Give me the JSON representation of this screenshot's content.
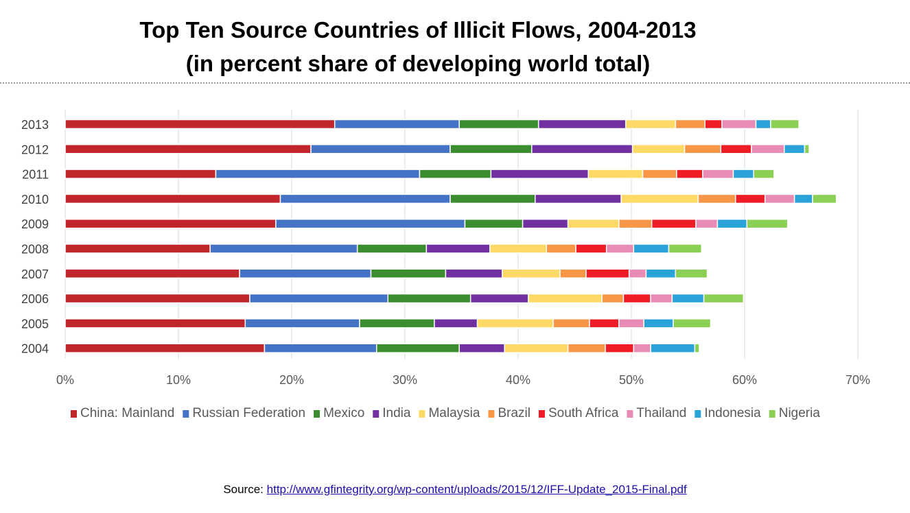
{
  "title": {
    "line1": "Top Ten Source Countries of Illicit Flows, 2004-2013",
    "line2": "(in percent share of developing world total)"
  },
  "source": {
    "label": "Source:",
    "url_text": "http://www.gfintegrity.org/wp-content/uploads/2015/12/IFF-Update_2015-Final.pdf"
  },
  "chart_data": {
    "type": "bar",
    "orientation": "horizontal",
    "stacked": true,
    "categories": [
      "2013",
      "2012",
      "2011",
      "2010",
      "2009",
      "2008",
      "2007",
      "2006",
      "2005",
      "2004"
    ],
    "xlim": [
      0,
      70
    ],
    "x_ticks": [
      "0%",
      "10%",
      "20%",
      "30%",
      "40%",
      "50%",
      "60%",
      "70%"
    ],
    "grid": "vertical",
    "legend_position": "bottom",
    "series": [
      {
        "name": "China: Mainland",
        "color": "#c0262b",
        "values": [
          23.8,
          21.7,
          13.3,
          19.0,
          18.6,
          12.8,
          15.4,
          16.3,
          15.9,
          17.6
        ]
      },
      {
        "name": "Russian Federation",
        "color": "#4472c4",
        "values": [
          11.0,
          12.3,
          18.0,
          15.0,
          16.7,
          13.0,
          11.6,
          12.2,
          10.1,
          9.9
        ]
      },
      {
        "name": "Mexico",
        "color": "#3c8d2f",
        "values": [
          7.0,
          7.2,
          6.3,
          7.5,
          5.1,
          6.1,
          6.6,
          7.3,
          6.6,
          7.3
        ]
      },
      {
        "name": "India",
        "color": "#7030a0",
        "values": [
          7.7,
          8.9,
          8.6,
          7.6,
          4.0,
          5.6,
          5.0,
          5.1,
          3.8,
          4.0
        ]
      },
      {
        "name": "Malaysia",
        "color": "#ffd966",
        "values": [
          4.4,
          4.6,
          4.8,
          6.8,
          4.5,
          5.0,
          5.1,
          6.5,
          6.7,
          5.6
        ]
      },
      {
        "name": "Brazil",
        "color": "#f79646",
        "values": [
          2.6,
          3.2,
          3.0,
          3.3,
          2.9,
          2.6,
          2.3,
          1.9,
          3.2,
          3.3
        ]
      },
      {
        "name": "South Africa",
        "color": "#ee1c25",
        "values": [
          1.5,
          2.7,
          2.3,
          2.6,
          3.9,
          2.7,
          3.8,
          2.4,
          2.6,
          2.5
        ]
      },
      {
        "name": "Thailand",
        "color": "#e88cb6",
        "values": [
          3.0,
          2.9,
          2.7,
          2.6,
          1.9,
          2.4,
          1.5,
          1.9,
          2.2,
          1.5
        ]
      },
      {
        "name": "Indonesia",
        "color": "#2aa3d8",
        "values": [
          1.3,
          1.8,
          1.8,
          1.6,
          2.6,
          3.1,
          2.6,
          2.8,
          2.6,
          3.9
        ]
      },
      {
        "name": "Nigeria",
        "color": "#8bcf55",
        "values": [
          2.5,
          0.4,
          1.8,
          2.1,
          3.6,
          2.9,
          2.8,
          3.5,
          3.3,
          0.4
        ]
      }
    ]
  }
}
